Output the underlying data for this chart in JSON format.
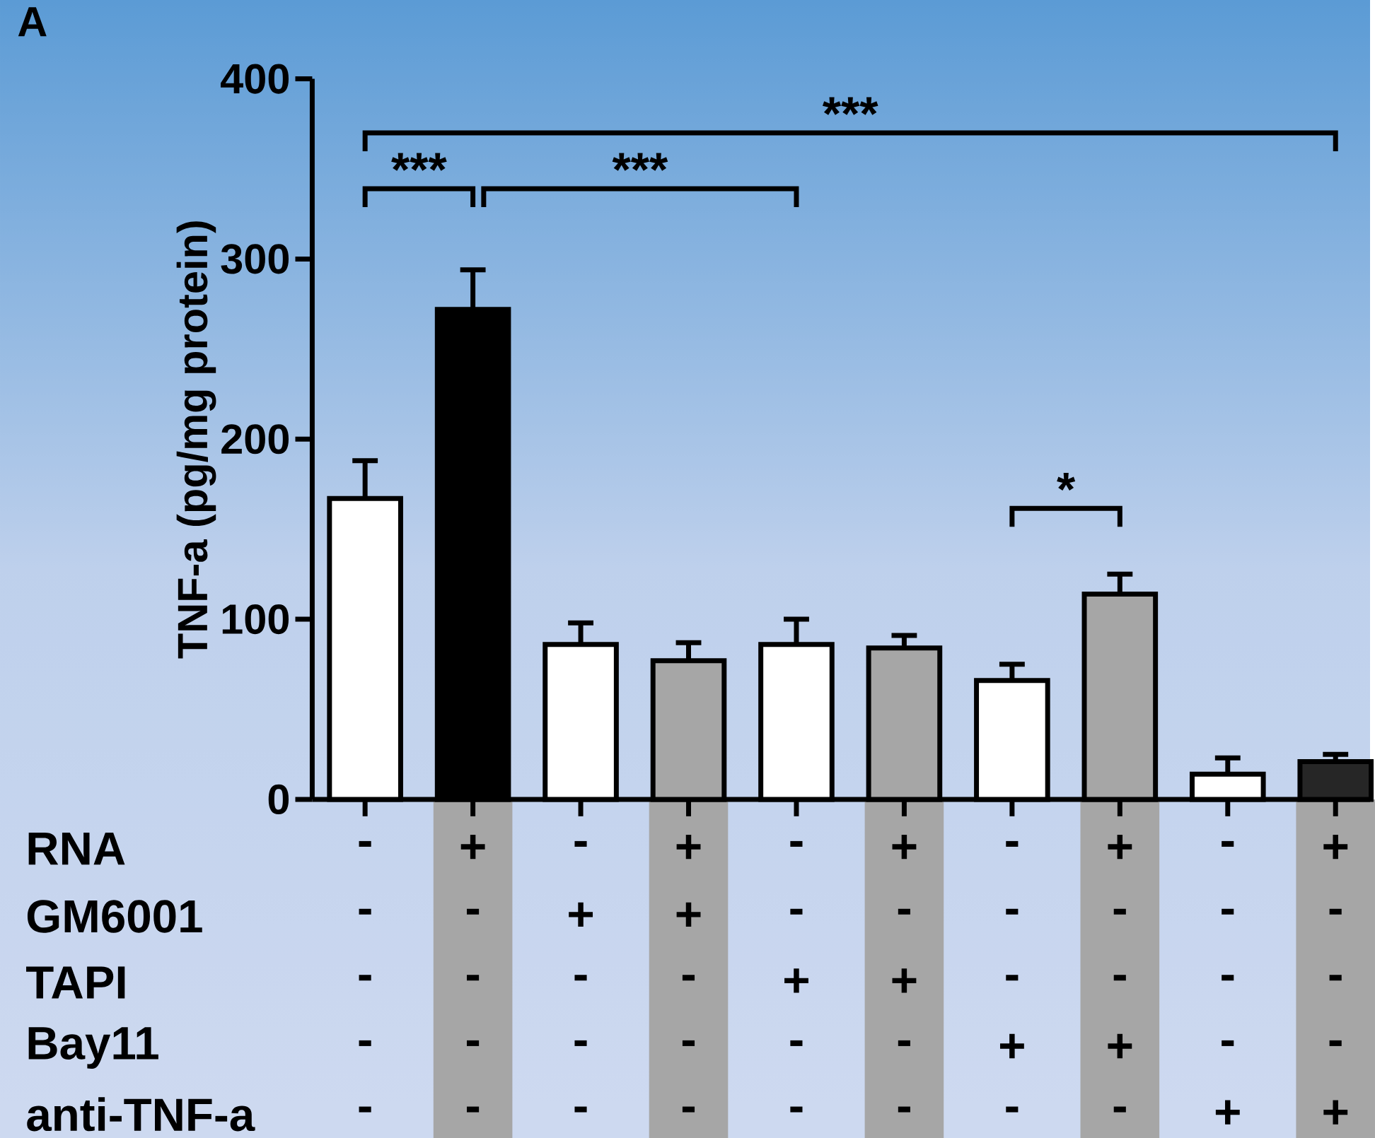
{
  "chart_data": {
    "type": "bar",
    "ylabel": "TNF-a (pg/mg protein)",
    "categories": [
      null,
      null,
      null,
      null,
      null,
      null,
      null,
      null,
      null,
      null
    ],
    "values": [
      167,
      272,
      86,
      77,
      86,
      84,
      66,
      114,
      14,
      21
    ],
    "errors": [
      [
        167,
        188
      ],
      [
        272,
        294
      ],
      [
        86,
        98
      ],
      [
        77,
        87
      ],
      [
        86,
        100
      ],
      [
        84,
        91
      ],
      [
        66,
        75
      ],
      [
        114,
        125
      ],
      [
        14,
        23
      ],
      [
        21,
        25
      ]
    ],
    "colors": [
      "#ffffff",
      "#000000",
      "#ffffff",
      "#a6a6a6",
      "#ffffff",
      "#a6a6a6",
      "#ffffff",
      "#a6a6a6",
      "#ffffff",
      "#262626"
    ],
    "ylim": [
      0,
      400
    ],
    "yticks": [
      0,
      100,
      200,
      300,
      400
    ],
    "grid": false,
    "annotations": [
      "A",
      "***",
      "***",
      "***",
      "*",
      "RNA",
      "-",
      "+",
      "-",
      "+",
      "-",
      "+",
      "-",
      "+",
      "-",
      "+",
      "GM6001",
      "-",
      "-",
      "+",
      "+",
      "-",
      "-",
      "-",
      "-",
      "-",
      "-",
      "TAPI",
      "-",
      "-",
      "-",
      "-",
      "+",
      "+",
      "-",
      "-",
      "-",
      "-",
      "Bay11",
      "-",
      "-",
      "-",
      "-",
      "-",
      "-",
      "+",
      "+",
      "-",
      "-",
      "anti-TNF-a",
      "-",
      "-",
      "-",
      "-",
      "-",
      "-",
      "-",
      "-",
      "+",
      "+"
    ]
  }
}
